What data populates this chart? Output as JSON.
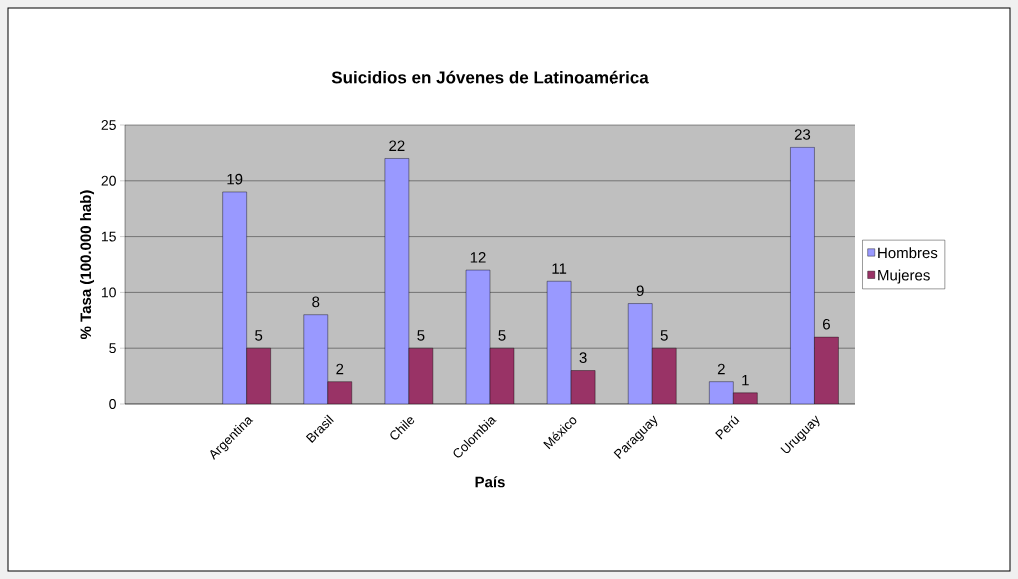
{
  "chart_data": {
    "type": "bar",
    "title": "Suicidios en Jóvenes de Latinoamérica",
    "xlabel": "País",
    "ylabel": "% Tasa (100.000 hab)",
    "categories": [
      null,
      "Argentina",
      "Brasil",
      "Chile",
      "Colombia",
      "México",
      "Paraguay",
      "Perú",
      "Uruguay"
    ],
    "series": [
      {
        "name": "Hombres",
        "color": "#9999ff",
        "values": [
          null,
          19,
          8,
          22,
          12,
          11,
          9,
          2,
          23
        ]
      },
      {
        "name": "Mujeres",
        "color": "#993366",
        "values": [
          null,
          5,
          2,
          5,
          5,
          3,
          5,
          1,
          6
        ]
      }
    ],
    "ylim": [
      0,
      25
    ],
    "yticks": [
      0,
      5,
      10,
      15,
      20,
      25
    ],
    "grid": "y",
    "legend": "right",
    "data_labels": true
  }
}
